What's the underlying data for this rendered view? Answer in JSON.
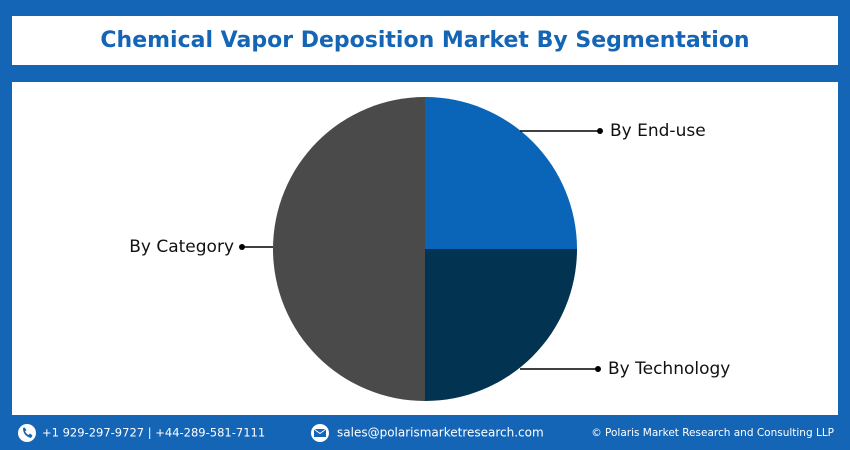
{
  "chart_data": {
    "type": "pie",
    "title": "Chemical Vapor Deposition Market By Segmentation",
    "categories": [
      "By End-use",
      "By Technology",
      "By Category"
    ],
    "values": [
      25,
      25,
      50
    ],
    "colors": [
      "#0a64b7",
      "#023452",
      "#4a4a4a"
    ]
  },
  "footer": {
    "phone": "+1 929-297-9727 | +44-289-581-7111",
    "email": "sales@polarismarketresearch.com",
    "copyright": "© Polaris Market Research and Consulting LLP"
  }
}
